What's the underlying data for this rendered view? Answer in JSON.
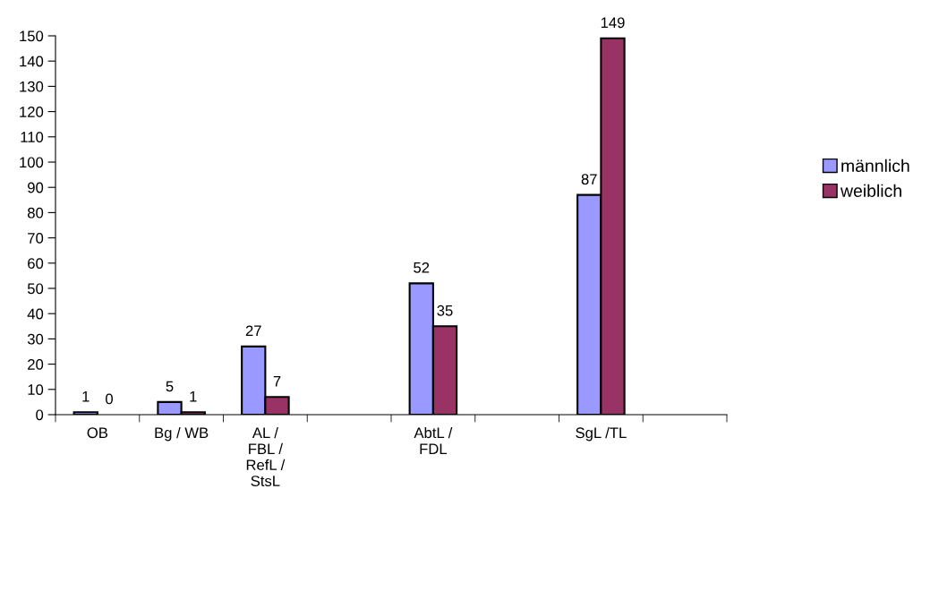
{
  "chart_data": {
    "type": "bar",
    "categories": [
      "OB",
      "Bg / WB",
      "AL /\nFBL /\nRefL /\nStsL",
      null,
      "AbtL /\nFDL",
      null,
      "SgL /TL",
      null
    ],
    "series": [
      {
        "name": "männlich",
        "color": "#9999ff",
        "values": [
          1,
          5,
          27,
          null,
          52,
          null,
          87,
          null
        ]
      },
      {
        "name": "weiblich",
        "color": "#993366",
        "values": [
          0,
          1,
          7,
          null,
          35,
          null,
          149,
          null
        ]
      }
    ],
    "ylim": [
      0,
      150
    ],
    "yticks": [
      0,
      10,
      20,
      30,
      40,
      50,
      60,
      70,
      80,
      90,
      100,
      110,
      120,
      130,
      140,
      150
    ],
    "data_labels": true,
    "grid": false,
    "legend": "right"
  }
}
